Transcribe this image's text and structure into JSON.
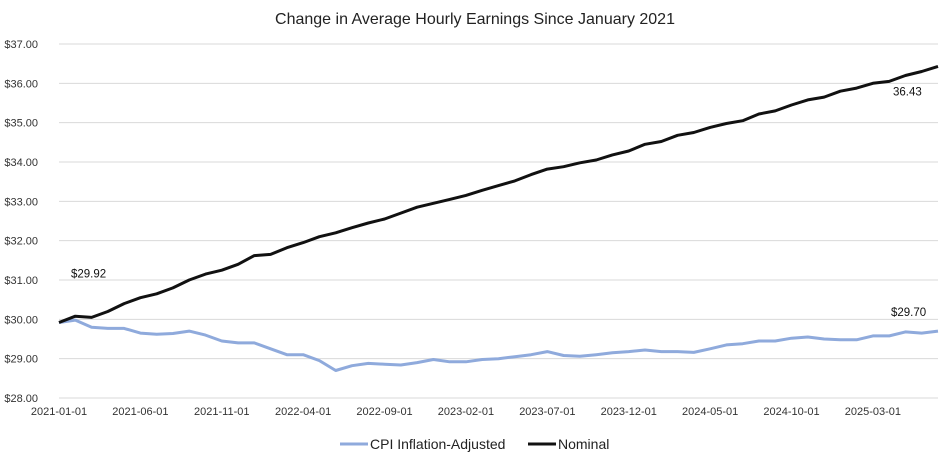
{
  "chart_data": {
    "type": "line",
    "title": "Change in Average Hourly Earnings Since January 2021",
    "xlabel": "",
    "ylabel": "",
    "ylim": [
      28.0,
      37.0
    ],
    "y_ticks": [
      "$28.00",
      "$29.00",
      "$30.00",
      "$31.00",
      "$32.00",
      "$33.00",
      "$34.00",
      "$35.00",
      "$36.00",
      "$37.00"
    ],
    "x_ticks": [
      "2021-01-01",
      "2021-06-01",
      "2021-11-01",
      "2022-04-01",
      "2022-09-01",
      "2023-02-01",
      "2023-07-01",
      "2023-12-01",
      "2024-05-01",
      "2024-10-01",
      "2025-03-01"
    ],
    "x_start": "2021-01-01",
    "grid": true,
    "legend_position": "bottom",
    "series": [
      {
        "name": "CPI Inflation-Adjusted",
        "color": "#8faadc",
        "values": [
          29.92,
          29.98,
          29.8,
          29.77,
          29.77,
          29.65,
          29.62,
          29.64,
          29.7,
          29.6,
          29.45,
          29.4,
          29.4,
          29.25,
          29.1,
          29.1,
          28.95,
          28.7,
          28.82,
          28.88,
          28.86,
          28.84,
          28.9,
          28.98,
          28.92,
          28.92,
          28.98,
          29.0,
          29.05,
          29.1,
          29.18,
          29.08,
          29.06,
          29.1,
          29.15,
          29.18,
          29.22,
          29.18,
          29.18,
          29.16,
          29.25,
          29.35,
          29.38,
          29.45,
          29.45,
          29.52,
          29.55,
          29.5,
          29.48,
          29.48,
          29.58,
          29.58,
          29.68,
          29.65,
          29.7
        ]
      },
      {
        "name": "Nominal",
        "color": "#111111",
        "values": [
          29.92,
          30.08,
          30.05,
          30.2,
          30.4,
          30.55,
          30.65,
          30.8,
          31.0,
          31.15,
          31.25,
          31.4,
          31.62,
          31.65,
          31.82,
          31.95,
          32.1,
          32.2,
          32.33,
          32.45,
          32.55,
          32.7,
          32.85,
          32.95,
          33.05,
          33.15,
          33.28,
          33.4,
          33.52,
          33.68,
          33.82,
          33.88,
          33.98,
          34.05,
          34.18,
          34.28,
          34.45,
          34.52,
          34.68,
          34.75,
          34.88,
          34.98,
          35.05,
          35.22,
          35.3,
          35.45,
          35.58,
          35.65,
          35.8,
          35.88,
          36.0,
          36.05,
          36.2,
          36.3,
          36.43
        ]
      }
    ],
    "annotations": [
      {
        "text": "$29.92",
        "series": 1,
        "index": 0
      },
      {
        "text": "36.43",
        "series": 1,
        "index": 54
      },
      {
        "text": "$29.70",
        "series": 0,
        "index": 54
      }
    ]
  }
}
